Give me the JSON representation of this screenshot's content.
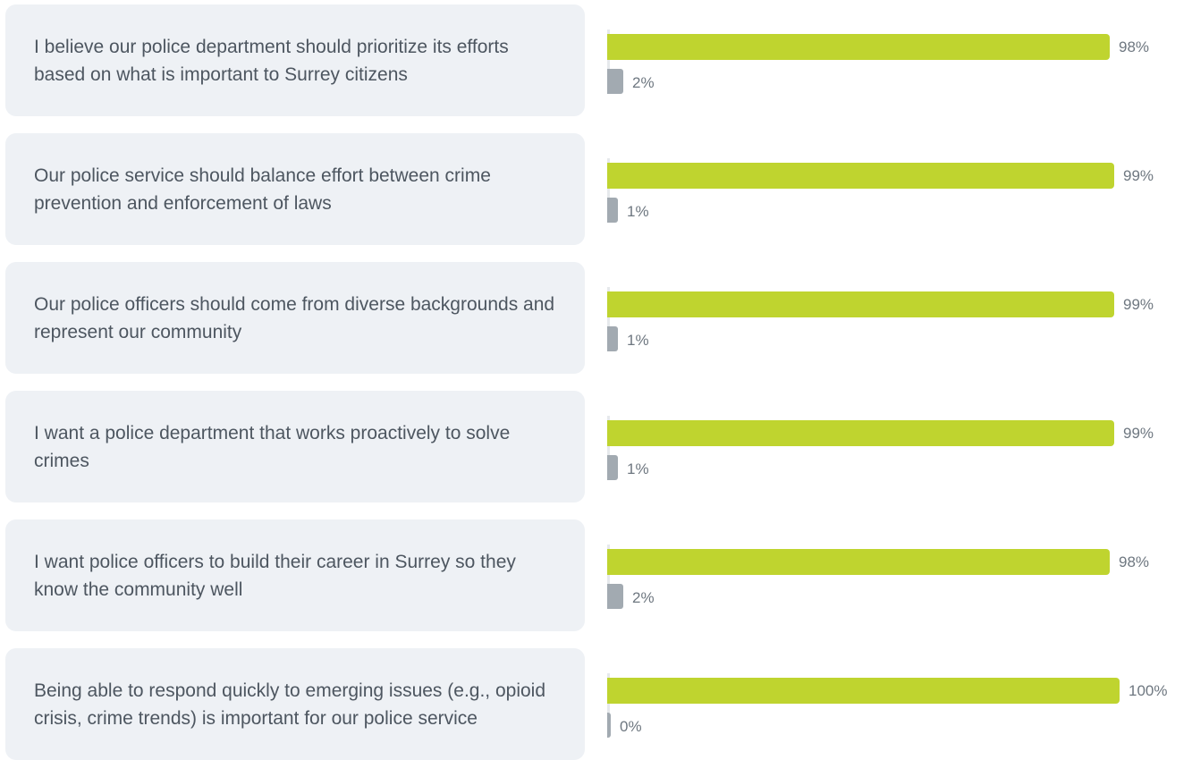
{
  "chart_data": {
    "type": "bar",
    "orientation": "horizontal",
    "categories": [
      "I believe our police department should prioritize its efforts based on what is important to Surrey citizens",
      "Our police service should balance effort between crime prevention and enforcement of laws",
      "Our police officers should come from diverse backgrounds and represent our community",
      "I want a police department that works proactively to solve crimes",
      "I want police officers to build their career in Surrey so they know the community well",
      "Being able to respond quickly to emerging issues (e.g., opioid crisis, crime trends) is important for our police service"
    ],
    "series": [
      {
        "values": [
          98,
          99,
          99,
          99,
          98,
          100
        ],
        "labels": [
          "98%",
          "99%",
          "99%",
          "99%",
          "98%",
          "100%"
        ],
        "color": "#bfd42f"
      },
      {
        "values": [
          2,
          1,
          1,
          1,
          2,
          0
        ],
        "labels": [
          "2%",
          "1%",
          "1%",
          "1%",
          "2%",
          "0%"
        ],
        "color": "#a2aab1"
      }
    ],
    "xlim": [
      0,
      100
    ],
    "grid": false,
    "legend": "none"
  },
  "colors": {
    "card_background": "#eef1f5",
    "statement_text": "#4d5660",
    "value_text": "#6e7780"
  }
}
